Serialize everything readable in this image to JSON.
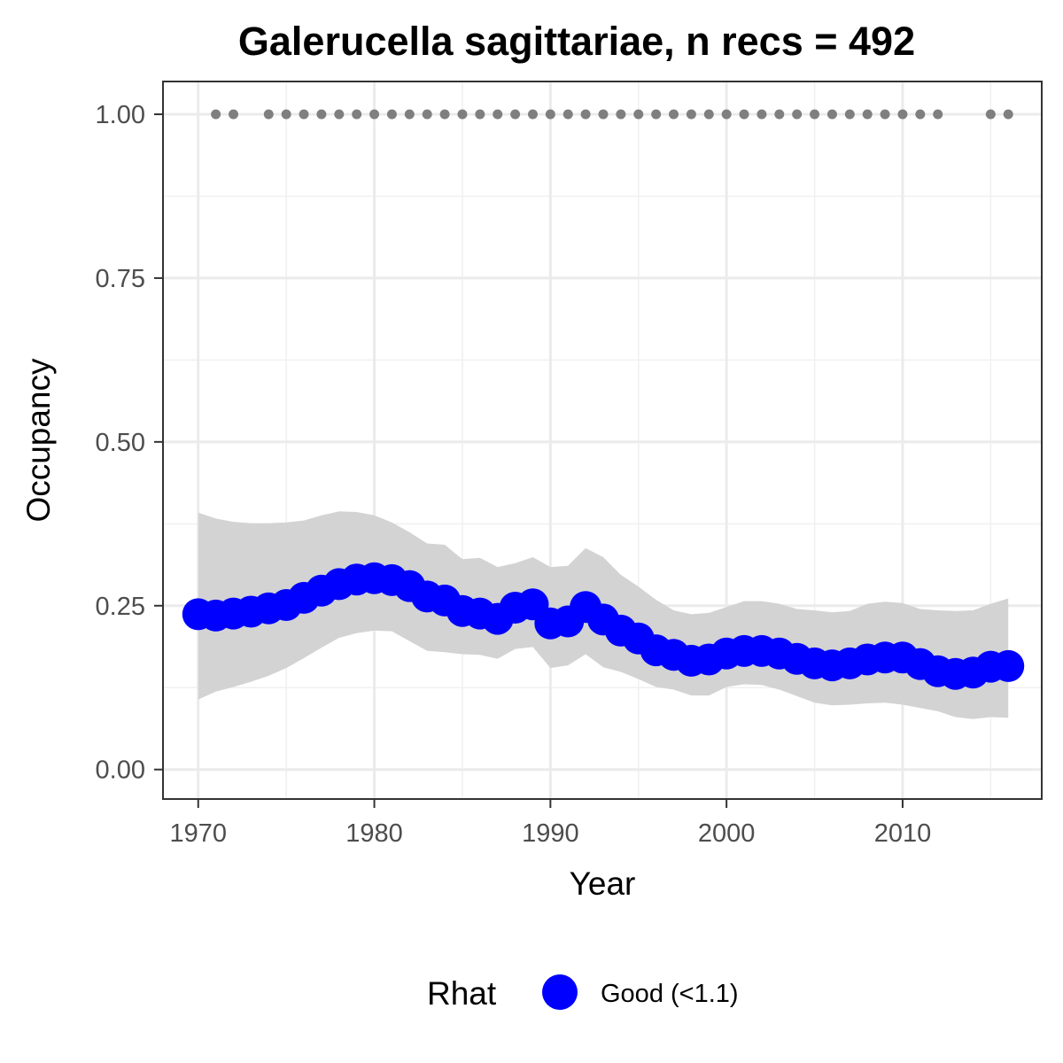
{
  "chart_data": {
    "type": "line",
    "title": "Galerucella sagittariae, n recs = 492",
    "xlabel": "Year",
    "ylabel": "Occupancy",
    "xlim": [
      1968.0,
      2017.9
    ],
    "ylim": [
      -0.045,
      1.05
    ],
    "x_ticks": [
      1970,
      1980,
      1990,
      2000,
      2010
    ],
    "x_tick_labels": [
      "1970",
      "1980",
      "1990",
      "2000",
      "2010"
    ],
    "y_ticks": [
      0,
      0.25,
      0.5,
      0.75,
      1.0
    ],
    "y_tick_labels": [
      "0.00",
      "0.25",
      "0.50",
      "0.75",
      "1.00"
    ],
    "grid": true,
    "series": [
      {
        "name": "Good (<1.1)",
        "color": "#0000ff",
        "x": [
          1970,
          1971,
          1972,
          1973,
          1974,
          1975,
          1976,
          1977,
          1978,
          1979,
          1980,
          1981,
          1982,
          1983,
          1984,
          1985,
          1986,
          1987,
          1988,
          1989,
          1990,
          1991,
          1992,
          1993,
          1994,
          1995,
          1996,
          1997,
          1998,
          1999,
          2000,
          2001,
          2002,
          2003,
          2004,
          2005,
          2006,
          2007,
          2008,
          2009,
          2010,
          2011,
          2012,
          2013,
          2014,
          2015,
          2016
        ],
        "y": [
          0.237,
          0.235,
          0.238,
          0.241,
          0.246,
          0.251,
          0.262,
          0.273,
          0.283,
          0.29,
          0.292,
          0.289,
          0.28,
          0.264,
          0.258,
          0.242,
          0.238,
          0.23,
          0.247,
          0.252,
          0.223,
          0.226,
          0.248,
          0.229,
          0.212,
          0.2,
          0.182,
          0.175,
          0.166,
          0.168,
          0.177,
          0.181,
          0.181,
          0.177,
          0.169,
          0.162,
          0.159,
          0.162,
          0.168,
          0.171,
          0.171,
          0.161,
          0.15,
          0.146,
          0.148,
          0.157,
          0.158
        ]
      }
    ],
    "ci_band": {
      "x": [
        1970,
        1971,
        1972,
        1973,
        1974,
        1975,
        1976,
        1977,
        1978,
        1979,
        1980,
        1981,
        1982,
        1983,
        1984,
        1985,
        1986,
        1987,
        1988,
        1989,
        1990,
        1991,
        1992,
        1993,
        1994,
        1995,
        1996,
        1997,
        1998,
        1999,
        2000,
        2001,
        2002,
        2003,
        2004,
        2005,
        2006,
        2007,
        2008,
        2009,
        2010,
        2011,
        2012,
        2013,
        2014,
        2015,
        2016
      ],
      "upper": [
        0.392,
        0.383,
        0.378,
        0.376,
        0.376,
        0.377,
        0.38,
        0.388,
        0.394,
        0.393,
        0.388,
        0.377,
        0.362,
        0.345,
        0.343,
        0.321,
        0.323,
        0.309,
        0.315,
        0.324,
        0.309,
        0.311,
        0.338,
        0.324,
        0.297,
        0.279,
        0.259,
        0.243,
        0.237,
        0.239,
        0.248,
        0.257,
        0.257,
        0.253,
        0.245,
        0.243,
        0.24,
        0.242,
        0.253,
        0.256,
        0.254,
        0.245,
        0.243,
        0.242,
        0.243,
        0.253,
        0.261
      ],
      "lower": [
        0.107,
        0.119,
        0.126,
        0.134,
        0.143,
        0.155,
        0.17,
        0.186,
        0.201,
        0.208,
        0.212,
        0.211,
        0.196,
        0.181,
        0.179,
        0.176,
        0.175,
        0.169,
        0.184,
        0.187,
        0.155,
        0.159,
        0.176,
        0.156,
        0.149,
        0.138,
        0.126,
        0.122,
        0.113,
        0.113,
        0.126,
        0.13,
        0.129,
        0.122,
        0.112,
        0.102,
        0.098,
        0.099,
        0.101,
        0.102,
        0.099,
        0.094,
        0.089,
        0.08,
        0.077,
        0.08,
        0.079
      ],
      "color": "#d3d3d3"
    },
    "record_years": {
      "x": [
        1971,
        1972,
        1974,
        1975,
        1976,
        1977,
        1978,
        1979,
        1980,
        1981,
        1982,
        1983,
        1984,
        1985,
        1986,
        1987,
        1988,
        1989,
        1990,
        1991,
        1992,
        1993,
        1994,
        1995,
        1996,
        1997,
        1998,
        1999,
        2000,
        2001,
        2002,
        2003,
        2004,
        2005,
        2006,
        2007,
        2008,
        2009,
        2010,
        2011,
        2012,
        2015,
        2016
      ],
      "y": 1.0,
      "color": "#7f7f7f"
    },
    "legend": {
      "title": "Rhat",
      "placement": "bottom",
      "entries": [
        {
          "label": "Good (<1.1)",
          "color": "#0000ff"
        }
      ]
    }
  }
}
